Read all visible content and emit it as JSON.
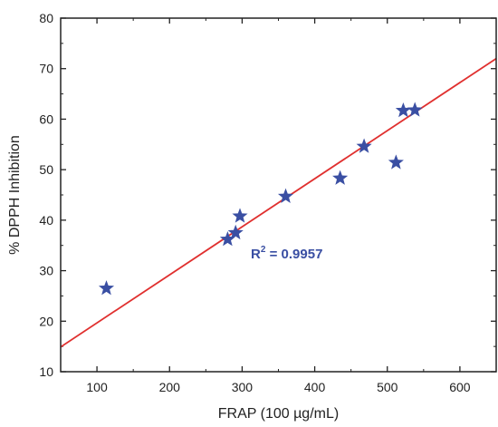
{
  "chart_data": {
    "type": "scatter",
    "title": "",
    "xlabel": "FRAP (100 µg/mL)",
    "ylabel": "% DPPH Inhibition",
    "xlim": [
      50,
      650
    ],
    "ylim": [
      10,
      80
    ],
    "xticks": [
      100,
      200,
      300,
      400,
      500,
      600
    ],
    "yticks": [
      10,
      20,
      30,
      40,
      50,
      60,
      70,
      80
    ],
    "grid": false,
    "colors": {
      "points": "#3a4fa3",
      "fit_line": "#e0302f",
      "annotation": "#3a4fa3",
      "axis": "#222222"
    },
    "series": [
      {
        "marker": "star",
        "points": [
          {
            "x": 113,
            "y": 26.5
          },
          {
            "x": 280,
            "y": 36.2
          },
          {
            "x": 291,
            "y": 37.5
          },
          {
            "x": 297,
            "y": 40.8
          },
          {
            "x": 360,
            "y": 44.7
          },
          {
            "x": 435,
            "y": 48.3
          },
          {
            "x": 468,
            "y": 54.6
          },
          {
            "x": 512,
            "y": 51.4
          },
          {
            "x": 522,
            "y": 61.7
          },
          {
            "x": 538,
            "y": 61.8
          }
        ]
      }
    ],
    "fit_line": {
      "x": [
        50,
        650
      ],
      "y": [
        14.9,
        72.0
      ]
    },
    "annotation": {
      "text": "R",
      "superscript": "2",
      "suffix": " = 0.9957",
      "x": 312,
      "y": 32.4
    }
  }
}
